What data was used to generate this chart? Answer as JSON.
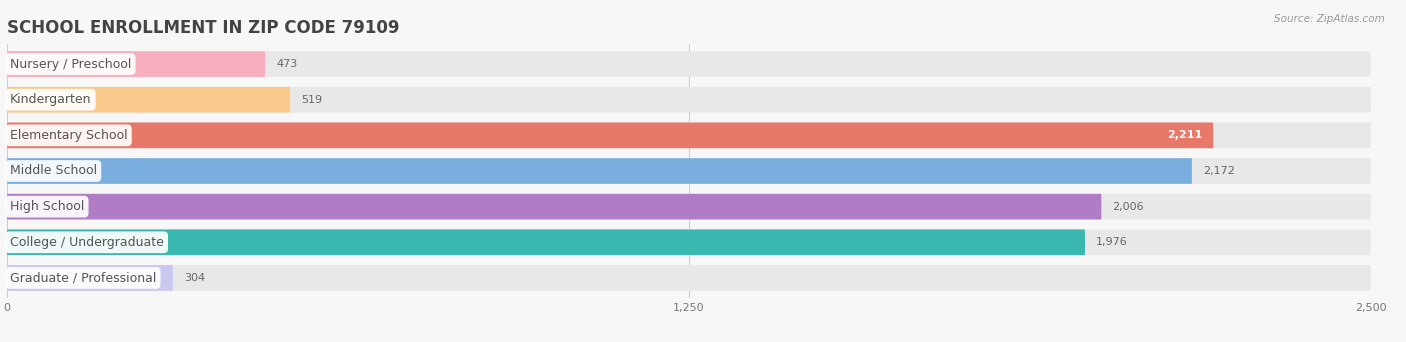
{
  "title": "SCHOOL ENROLLMENT IN ZIP CODE 79109",
  "source": "Source: ZipAtlas.com",
  "categories": [
    "Nursery / Preschool",
    "Kindergarten",
    "Elementary School",
    "Middle School",
    "High School",
    "College / Undergraduate",
    "Graduate / Professional"
  ],
  "values": [
    473,
    519,
    2211,
    2172,
    2006,
    1976,
    304
  ],
  "colors": [
    "#f7afc0",
    "#f9c98b",
    "#e8796a",
    "#7aaede",
    "#b07cc6",
    "#3ab8b0",
    "#c9c8f0"
  ],
  "xlim": [
    0,
    2500
  ],
  "xticks": [
    0,
    1250,
    2500
  ],
  "background_color": "#f7f7f7",
  "bar_background": "#e8e8e8",
  "title_fontsize": 12,
  "label_fontsize": 9,
  "value_fontsize": 8,
  "bar_height": 0.72
}
